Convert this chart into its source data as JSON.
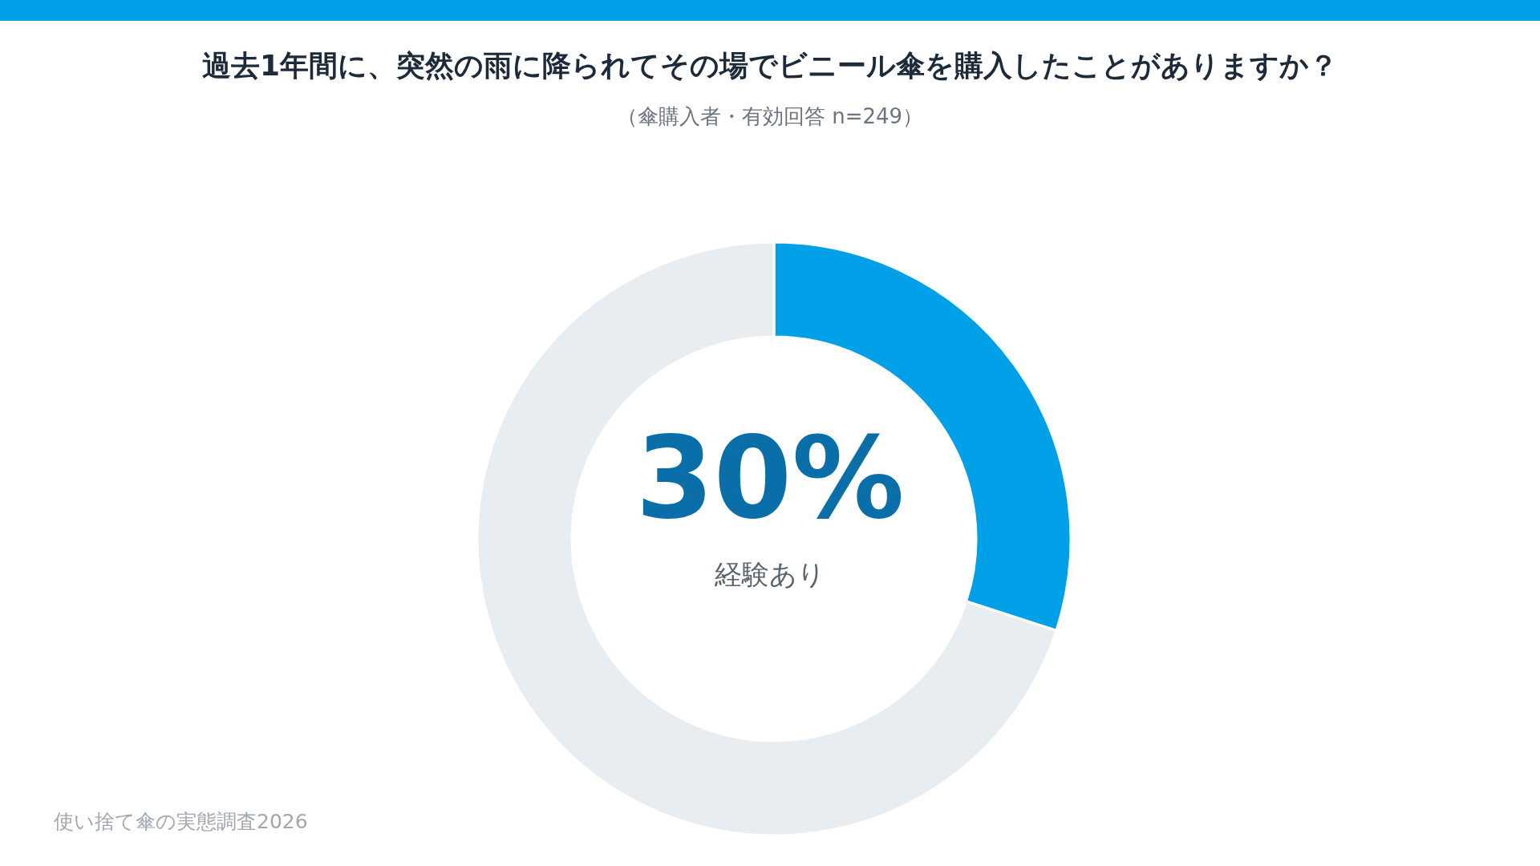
{
  "chart_data": {
    "type": "donut",
    "title": "過去1年間に、突然の雨に降られてその場でビニール傘を購入したことがありますか？",
    "subtitle": "（傘購入者・有効回答 n=249）",
    "categories": [
      "経験あり",
      null
    ],
    "values": [
      30,
      70
    ],
    "colors": [
      "#00a0e9",
      "#e8edf1"
    ],
    "value_labels": [
      "30%",
      null
    ],
    "legend": false,
    "annotations": [
      "使い捨て傘の実態調査2026"
    ]
  }
}
